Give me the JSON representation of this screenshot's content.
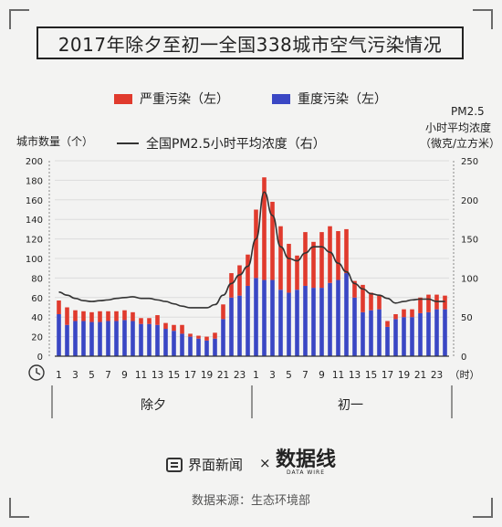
{
  "title": "2017年除夕至初一全国338城市空气污染情况",
  "legend": {
    "severe": "严重污染（左）",
    "heavy": "重度污染（左）",
    "pm": "全国PM2.5小时平均浓度（右）"
  },
  "colors": {
    "severe": "#e03a2d",
    "heavy": "#3a47c4",
    "line": "#333333"
  },
  "left_axis_title": "城市数量（个）",
  "right_axis_title": [
    "PM2.5",
    "小时平均浓度",
    "（微克/立方米）"
  ],
  "hour_unit": "（时）",
  "day_labels": [
    "除夕",
    "初一"
  ],
  "icons": {
    "clock": "clock-icon",
    "brand": "jiemian-logo-icon"
  },
  "footer": {
    "brand": "界面新闻",
    "times": "×",
    "partner": "数据线",
    "partner_sub": "DATA WIRE",
    "source": "数据来源：生态环境部"
  },
  "chart_data": {
    "type": "bar",
    "x": [
      "0",
      "1",
      "2",
      "3",
      "4",
      "5",
      "6",
      "7",
      "8",
      "9",
      "10",
      "11",
      "12",
      "13",
      "14",
      "15",
      "16",
      "17",
      "18",
      "19",
      "20",
      "21",
      "22",
      "23",
      "0",
      "1",
      "2",
      "3",
      "4",
      "5",
      "6",
      "7",
      "8",
      "9",
      "10",
      "11",
      "12",
      "13",
      "14",
      "15",
      "16",
      "17",
      "18",
      "19",
      "20",
      "21",
      "22",
      "23"
    ],
    "xticks": [
      "1",
      "3",
      "5",
      "7",
      "9",
      "11",
      "13",
      "15",
      "17",
      "19",
      "21",
      "23",
      "1",
      "3",
      "5",
      "7",
      "9",
      "11",
      "13",
      "15",
      "17",
      "19",
      "21",
      "23"
    ],
    "series": [
      {
        "name": "重度污染（左）",
        "axis": "left",
        "values": [
          43,
          32,
          36,
          36,
          35,
          35,
          36,
          36,
          37,
          36,
          33,
          33,
          32,
          28,
          26,
          23,
          20,
          18,
          16,
          18,
          38,
          60,
          62,
          72,
          80,
          78,
          78,
          68,
          65,
          68,
          72,
          70,
          70,
          75,
          78,
          85,
          60,
          45,
          47,
          48,
          30,
          38,
          40,
          40,
          44,
          45,
          48,
          48
        ]
      },
      {
        "name": "严重污染（左）",
        "axis": "left",
        "values": [
          14,
          18,
          11,
          10,
          10,
          11,
          10,
          10,
          10,
          9,
          6,
          6,
          10,
          6,
          6,
          9,
          3,
          3,
          4,
          6,
          15,
          25,
          31,
          32,
          70,
          105,
          80,
          65,
          50,
          35,
          55,
          47,
          57,
          58,
          50,
          45,
          17,
          28,
          18,
          14,
          6,
          5,
          8,
          8,
          16,
          18,
          15,
          14
        ]
      },
      {
        "name": "全国PM2.5小时平均浓度（右）",
        "axis": "right",
        "values": [
          82,
          78,
          74,
          71,
          70,
          71,
          72,
          74,
          75,
          76,
          74,
          74,
          72,
          70,
          67,
          64,
          62,
          62,
          62,
          66,
          78,
          93,
          104,
          115,
          150,
          210,
          180,
          140,
          125,
          122,
          132,
          140,
          140,
          133,
          119,
          108,
          93,
          86,
          80,
          78,
          74,
          68,
          70,
          72,
          73,
          73,
          70,
          70
        ]
      }
    ],
    "left_axis": {
      "min": 0,
      "max": 200,
      "ticks": [
        0,
        20,
        40,
        60,
        80,
        100,
        120,
        140,
        160,
        180,
        200
      ]
    },
    "right_axis": {
      "min": 0,
      "max": 250,
      "ticks": [
        0,
        50,
        100,
        150,
        200,
        250
      ]
    }
  }
}
